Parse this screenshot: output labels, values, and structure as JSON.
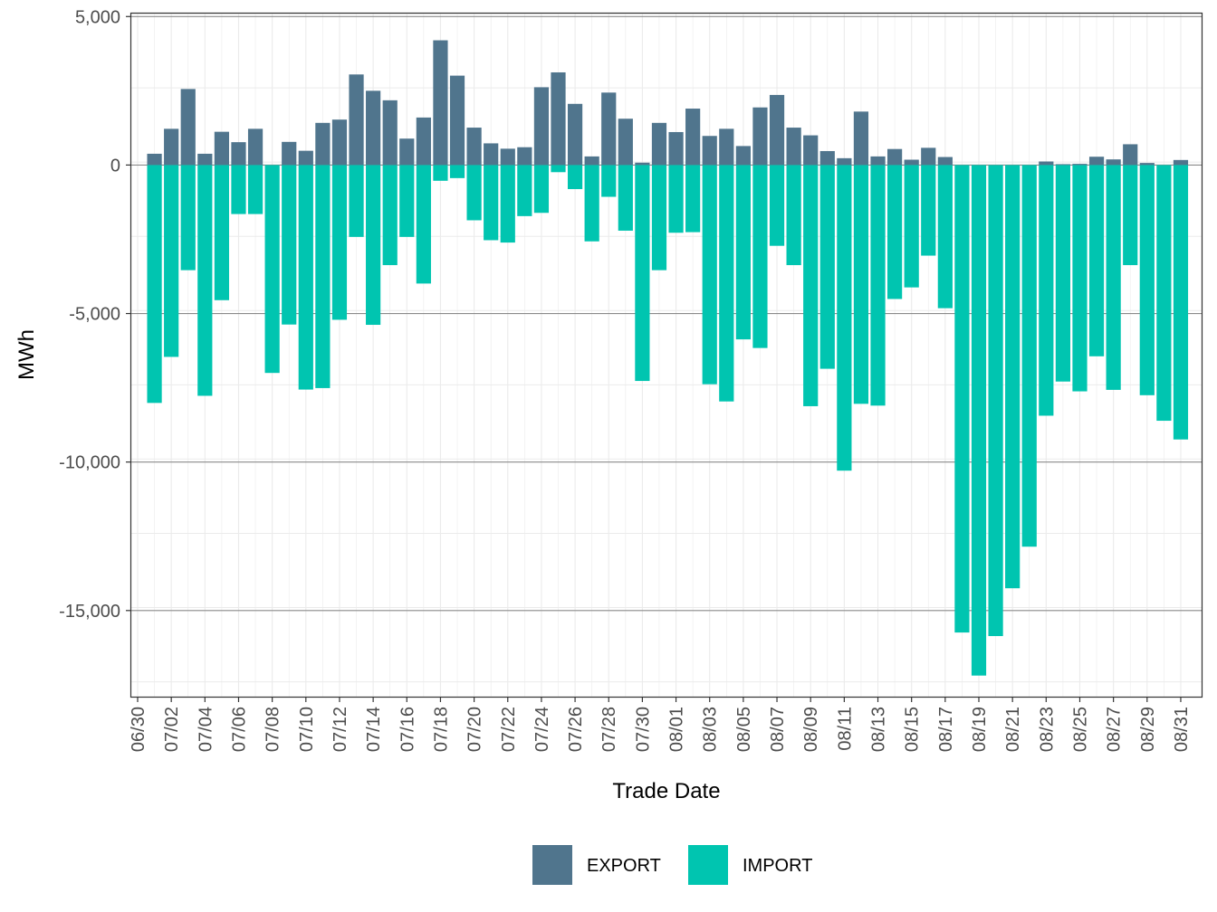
{
  "chart_data": {
    "type": "bar",
    "stacked": true,
    "xlabel": "Trade Date",
    "ylabel": "MWh",
    "ylim": [
      -17900,
      5100
    ],
    "y_ticks": [
      5000,
      0,
      -5000,
      -10000,
      -15000
    ],
    "y_tick_labels": [
      "5,000",
      "0",
      "-5,000",
      "-10,000",
      "-15,000"
    ],
    "x_tick_labels": [
      "06/30",
      "07/02",
      "07/04",
      "07/06",
      "07/08",
      "07/10",
      "07/12",
      "07/14",
      "07/16",
      "07/18",
      "07/20",
      "07/22",
      "07/24",
      "07/26",
      "07/28",
      "07/30",
      "08/01",
      "08/03",
      "08/05",
      "08/07",
      "08/09",
      "08/11",
      "08/13",
      "08/15",
      "08/17",
      "08/19",
      "08/21",
      "08/23",
      "08/25",
      "08/27",
      "08/29",
      "08/31"
    ],
    "categories": [
      "07/01",
      "07/02",
      "07/03",
      "07/04",
      "07/05",
      "07/06",
      "07/07",
      "07/08",
      "07/09",
      "07/10",
      "07/11",
      "07/12",
      "07/13",
      "07/14",
      "07/15",
      "07/16",
      "07/17",
      "07/18",
      "07/19",
      "07/20",
      "07/21",
      "07/22",
      "07/23",
      "07/24",
      "07/25",
      "07/26",
      "07/27",
      "07/28",
      "07/29",
      "07/30",
      "07/31",
      "08/01",
      "08/02",
      "08/03",
      "08/04",
      "08/05",
      "08/06",
      "08/07",
      "08/08",
      "08/09",
      "08/10",
      "08/11",
      "08/12",
      "08/13",
      "08/14",
      "08/15",
      "08/16",
      "08/17",
      "08/18",
      "08/19",
      "08/20",
      "08/21",
      "08/22",
      "08/23",
      "08/24",
      "08/25",
      "08/26",
      "08/27",
      "08/28",
      "08/29",
      "08/30",
      "08/31"
    ],
    "series": [
      {
        "name": "EXPORT",
        "color": "#50758d",
        "values": [
          380,
          1220,
          2560,
          380,
          1120,
          770,
          1220,
          0,
          780,
          480,
          1420,
          1530,
          3050,
          2500,
          2180,
          890,
          1600,
          4200,
          3010,
          1260,
          730,
          550,
          600,
          2620,
          3120,
          2060,
          290,
          2440,
          1560,
          80,
          1420,
          1110,
          1900,
          980,
          1220,
          640,
          1940,
          2360,
          1260,
          1000,
          470,
          230,
          1800,
          290,
          540,
          180,
          580,
          270,
          0,
          0,
          0,
          0,
          0,
          120,
          30,
          40,
          280,
          190,
          700,
          70,
          0,
          170
        ]
      },
      {
        "name": "IMPORT",
        "color": "#00c5b0",
        "values": [
          -8010,
          -6460,
          -3540,
          -7770,
          -4550,
          -1650,
          -1650,
          -7000,
          -5370,
          -7560,
          -7510,
          -5210,
          -2420,
          -5380,
          -3370,
          -2420,
          -3990,
          -530,
          -440,
          -1860,
          -2530,
          -2610,
          -1720,
          -1610,
          -240,
          -810,
          -2570,
          -1070,
          -2210,
          -7270,
          -3540,
          -2280,
          -2260,
          -7380,
          -7960,
          -5870,
          -6160,
          -2720,
          -3370,
          -8120,
          -6860,
          -10290,
          -8040,
          -8100,
          -4510,
          -4120,
          -3050,
          -4820,
          -15740,
          -17190,
          -15860,
          -14250,
          -12850,
          -8440,
          -7290,
          -7620,
          -6440,
          -7570,
          -3370,
          -7750,
          -8610,
          -9240
        ]
      }
    ],
    "legend": {
      "position": "bottom",
      "entries": [
        "EXPORT",
        "IMPORT"
      ]
    },
    "grid": true
  }
}
